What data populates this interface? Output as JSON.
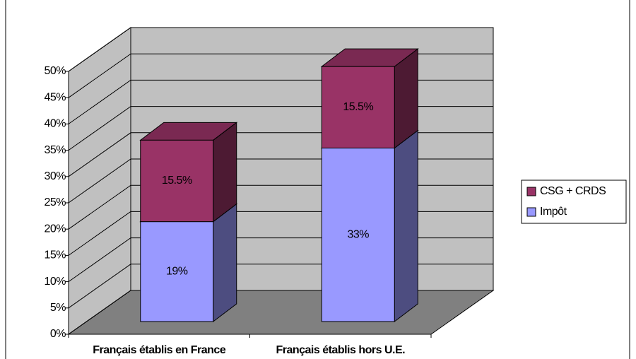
{
  "chart_data": {
    "type": "bar3d_stacked",
    "categories": [
      "Français établis en France",
      "Français établis hors U.E."
    ],
    "series": [
      {
        "name": "Impôt",
        "color": "#9999ff",
        "values": [
          19,
          33
        ],
        "value_labels": [
          "19%",
          "33%"
        ]
      },
      {
        "name": "CSG + CRDS",
        "color": "#993366",
        "values": [
          15.5,
          15.5
        ],
        "value_labels": [
          "15.5%",
          "15.5%"
        ]
      }
    ],
    "ylim": [
      0,
      50
    ],
    "yticks": [
      {
        "value": 0,
        "label": "0%"
      },
      {
        "value": 5,
        "label": "5%"
      },
      {
        "value": 10,
        "label": "10%"
      },
      {
        "value": 15,
        "label": "15%"
      },
      {
        "value": 20,
        "label": "20%"
      },
      {
        "value": 25,
        "label": "25%"
      },
      {
        "value": 30,
        "label": "30%"
      },
      {
        "value": 35,
        "label": "35%"
      },
      {
        "value": 40,
        "label": "40%"
      },
      {
        "value": 45,
        "label": "45%"
      },
      {
        "value": 50,
        "label": "50%"
      }
    ],
    "grid": true,
    "legend": "right"
  }
}
